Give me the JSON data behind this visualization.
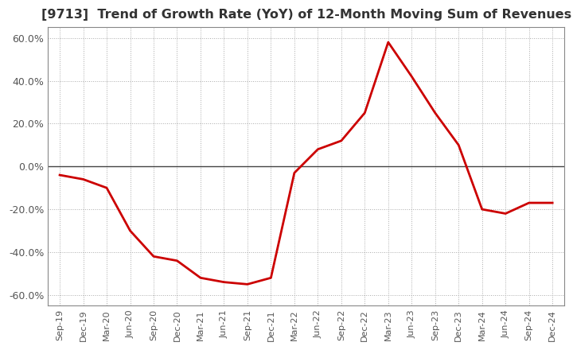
{
  "title": "[9713]  Trend of Growth Rate (YoY) of 12-Month Moving Sum of Revenues",
  "title_fontsize": 11.5,
  "line_color": "#cc0000",
  "line_width": 2.0,
  "background_color": "#ffffff",
  "grid_color": "#aaaaaa",
  "ylim": [
    -0.65,
    0.65
  ],
  "yticks": [
    -0.6,
    -0.4,
    -0.2,
    0.0,
    0.2,
    0.4,
    0.6
  ],
  "ytick_labels": [
    "-60.0%",
    "-40.0%",
    "-20.0%",
    "0.0%",
    "20.0%",
    "40.0%",
    "60.0%"
  ],
  "xtick_labels": [
    "Sep-19",
    "Dec-19",
    "Mar-20",
    "Jun-20",
    "Sep-20",
    "Dec-20",
    "Mar-21",
    "Jun-21",
    "Sep-21",
    "Dec-21",
    "Mar-22",
    "Jun-22",
    "Sep-22",
    "Dec-22",
    "Mar-23",
    "Jun-23",
    "Sep-23",
    "Dec-23",
    "Mar-24",
    "Jun-24",
    "Sep-24",
    "Dec-24"
  ],
  "values": [
    -0.04,
    -0.06,
    -0.1,
    -0.3,
    -0.42,
    -0.44,
    -0.52,
    -0.54,
    -0.55,
    -0.52,
    -0.03,
    0.08,
    0.12,
    0.25,
    0.58,
    0.42,
    0.25,
    0.1,
    -0.2,
    -0.22,
    -0.17,
    -0.17
  ]
}
